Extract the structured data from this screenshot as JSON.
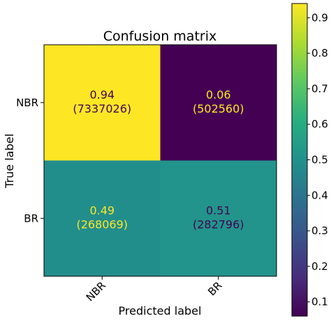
{
  "chart_data": {
    "type": "heatmap",
    "title": "Confusion matrix",
    "xlabel": "Predicted label",
    "ylabel": "True label",
    "x_categories": [
      "NBR",
      "BR"
    ],
    "y_categories": [
      "NBR",
      "BR"
    ],
    "values": [
      [
        0.94,
        0.06
      ],
      [
        0.49,
        0.51
      ]
    ],
    "counts": [
      [
        7337026,
        502560
      ],
      [
        268069,
        282796
      ]
    ],
    "cell_labels": [
      [
        {
          "value": "0.94",
          "count": "(7337026)"
        },
        {
          "value": "0.06",
          "count": "(502560)"
        }
      ],
      [
        {
          "value": "0.49",
          "count": "(268069)"
        },
        {
          "value": "0.51",
          "count": "(282796)"
        }
      ]
    ],
    "colormap": "viridis",
    "colorbar": {
      "range": [
        0.06,
        0.94
      ],
      "ticks": [
        "0.1",
        "0.2",
        "0.3",
        "0.4",
        "0.5",
        "0.6",
        "0.7",
        "0.8",
        "0.9"
      ]
    },
    "colors": {
      "high_text": "#440154",
      "low_text": "#fde725"
    }
  }
}
